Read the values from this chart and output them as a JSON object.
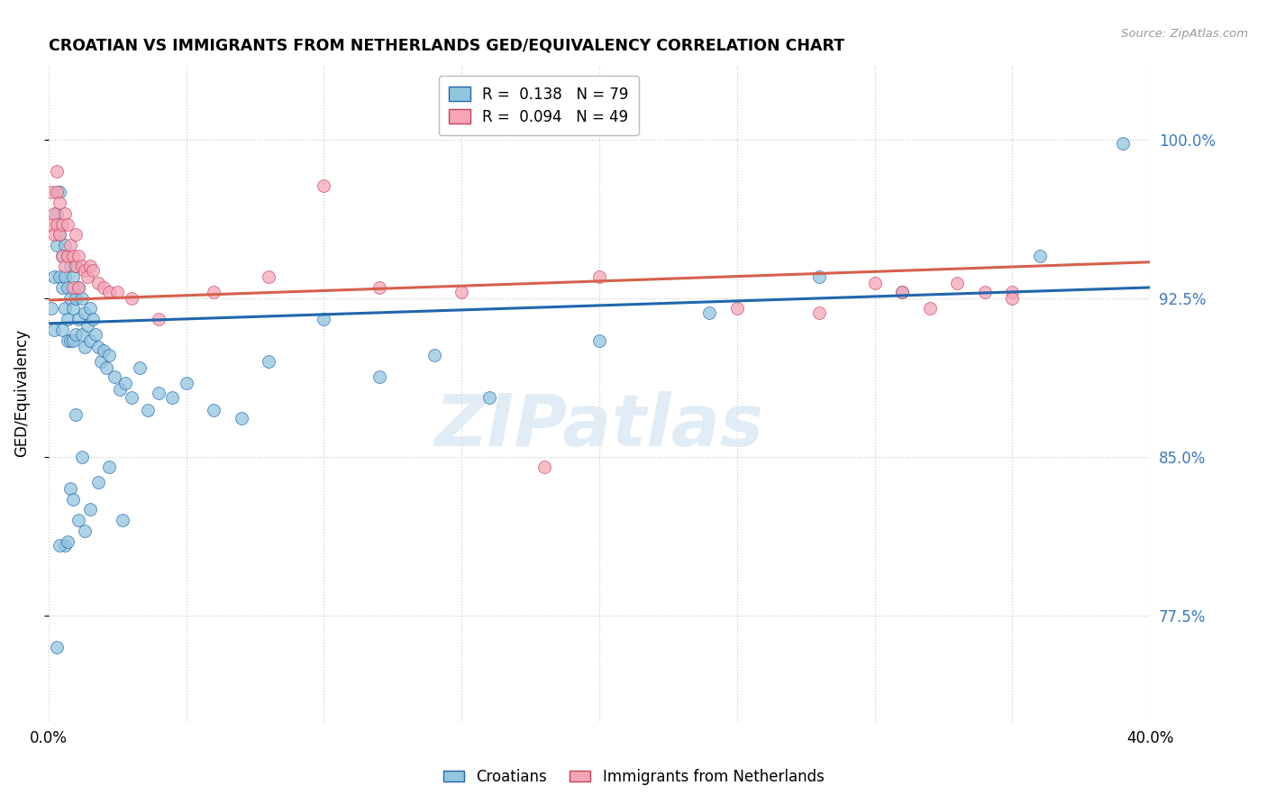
{
  "title": "CROATIAN VS IMMIGRANTS FROM NETHERLANDS GED/EQUIVALENCY CORRELATION CHART",
  "source": "Source: ZipAtlas.com",
  "ylabel": "GED/Equivalency",
  "ytick_vals": [
    0.775,
    0.85,
    0.925,
    1.0
  ],
  "ytick_labels": [
    "77.5%",
    "85.0%",
    "92.5%",
    "100.0%"
  ],
  "xlim": [
    0.0,
    0.4
  ],
  "ylim": [
    0.725,
    1.035
  ],
  "color_blue": "#92c5de",
  "color_pink": "#f4a6b8",
  "line_blue": "#2166ac",
  "line_pink": "#d6604d",
  "watermark": "ZIPatlas",
  "cro_x": [
    0.001,
    0.002,
    0.002,
    0.003,
    0.003,
    0.004,
    0.004,
    0.004,
    0.005,
    0.005,
    0.005,
    0.006,
    0.006,
    0.006,
    0.007,
    0.007,
    0.007,
    0.007,
    0.008,
    0.008,
    0.008,
    0.009,
    0.009,
    0.009,
    0.01,
    0.01,
    0.01,
    0.011,
    0.011,
    0.012,
    0.012,
    0.013,
    0.013,
    0.014,
    0.015,
    0.015,
    0.016,
    0.017,
    0.018,
    0.019,
    0.02,
    0.021,
    0.022,
    0.024,
    0.026,
    0.028,
    0.03,
    0.033,
    0.036,
    0.04,
    0.045,
    0.05,
    0.06,
    0.07,
    0.08,
    0.1,
    0.12,
    0.14,
    0.16,
    0.2,
    0.24,
    0.28,
    0.31,
    0.36,
    0.39,
    0.01,
    0.012,
    0.008,
    0.006,
    0.004,
    0.003,
    0.007,
    0.009,
    0.011,
    0.013,
    0.015,
    0.018,
    0.022,
    0.027
  ],
  "cro_y": [
    0.92,
    0.935,
    0.91,
    0.95,
    0.965,
    0.955,
    0.935,
    0.975,
    0.945,
    0.93,
    0.91,
    0.95,
    0.935,
    0.92,
    0.945,
    0.93,
    0.915,
    0.905,
    0.94,
    0.925,
    0.905,
    0.935,
    0.92,
    0.905,
    0.94,
    0.925,
    0.908,
    0.93,
    0.915,
    0.925,
    0.908,
    0.918,
    0.902,
    0.912,
    0.92,
    0.905,
    0.915,
    0.908,
    0.902,
    0.895,
    0.9,
    0.892,
    0.898,
    0.888,
    0.882,
    0.885,
    0.878,
    0.892,
    0.872,
    0.88,
    0.878,
    0.885,
    0.872,
    0.868,
    0.895,
    0.915,
    0.888,
    0.898,
    0.878,
    0.905,
    0.918,
    0.935,
    0.928,
    0.945,
    0.998,
    0.87,
    0.85,
    0.835,
    0.808,
    0.808,
    0.76,
    0.81,
    0.83,
    0.82,
    0.815,
    0.825,
    0.838,
    0.845,
    0.82
  ],
  "neth_x": [
    0.001,
    0.001,
    0.002,
    0.002,
    0.003,
    0.003,
    0.003,
    0.004,
    0.004,
    0.005,
    0.005,
    0.006,
    0.006,
    0.007,
    0.007,
    0.008,
    0.009,
    0.009,
    0.01,
    0.01,
    0.011,
    0.011,
    0.012,
    0.013,
    0.014,
    0.015,
    0.016,
    0.018,
    0.02,
    0.022,
    0.025,
    0.03,
    0.04,
    0.06,
    0.08,
    0.12,
    0.18,
    0.25,
    0.31,
    0.33,
    0.35,
    0.3,
    0.32,
    0.34,
    0.35,
    0.28,
    0.2,
    0.15,
    0.1
  ],
  "neth_y": [
    0.96,
    0.975,
    0.965,
    0.955,
    0.975,
    0.96,
    0.985,
    0.955,
    0.97,
    0.96,
    0.945,
    0.965,
    0.94,
    0.96,
    0.945,
    0.95,
    0.945,
    0.93,
    0.94,
    0.955,
    0.945,
    0.93,
    0.94,
    0.938,
    0.935,
    0.94,
    0.938,
    0.932,
    0.93,
    0.928,
    0.928,
    0.925,
    0.915,
    0.928,
    0.935,
    0.93,
    0.845,
    0.92,
    0.928,
    0.932,
    0.928,
    0.932,
    0.92,
    0.928,
    0.925,
    0.918,
    0.935,
    0.928,
    0.978
  ]
}
